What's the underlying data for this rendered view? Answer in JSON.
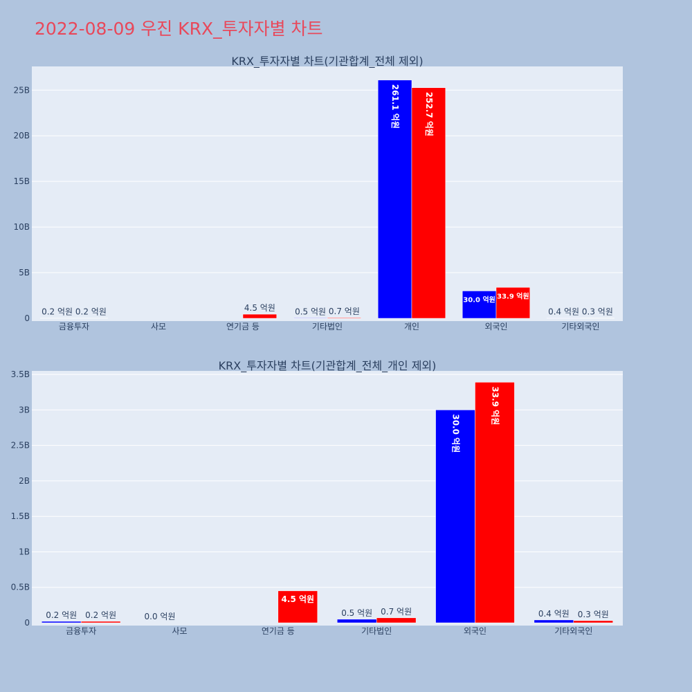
{
  "page": {
    "title": "2022-08-09 우진 KRX_투자자별 차트"
  },
  "colors": {
    "buy": "#0000ff",
    "sell": "#ff0000",
    "plot_bg": "#e5ecf6",
    "page_bg": "#b0c4de",
    "title": "#e8485a",
    "text": "#2a3f5f"
  },
  "chart_data": [
    {
      "type": "bar",
      "title": "KRX_투자자별 차트(기관합계_전체 제외)",
      "categories": [
        "금융투자",
        "사모",
        "연기금 등",
        "기타법인",
        "개인",
        "외국인",
        "기타외국인"
      ],
      "series": [
        {
          "color": "#0000ff",
          "values": [
            0.02,
            null,
            null,
            0.05,
            26.11,
            3.0,
            0.04
          ],
          "labels": [
            "0.2 억원",
            "",
            "",
            "0.5 억원",
            "261.1 억원",
            "30.0 억원",
            "0.4 억원"
          ]
        },
        {
          "color": "#ff0000",
          "values": [
            0.02,
            null,
            0.45,
            0.07,
            25.27,
            3.39,
            0.03
          ],
          "labels": [
            "0.2 억원",
            "",
            "4.5 억원",
            "0.7 억원",
            "252.7 억원",
            "33.9 억원",
            "0.3 억원"
          ]
        }
      ],
      "ylim": [
        0,
        27.6
      ],
      "yticks": [
        0,
        5,
        10,
        15,
        20,
        25
      ],
      "ytick_labels": [
        "0",
        "5B",
        "10B",
        "15B",
        "20B",
        "25B"
      ],
      "grid": true
    },
    {
      "type": "bar",
      "title": "KRX_투자자별 차트(기관합계_전체_개인 제외)",
      "categories": [
        "금융투자",
        "사모",
        "연기금 등",
        "기타법인",
        "외국인",
        "기타외국인"
      ],
      "series": [
        {
          "color": "#0000ff",
          "values": [
            0.02,
            0.0,
            null,
            0.05,
            3.0,
            0.04
          ],
          "labels": [
            "0.2 억원",
            "0.0 억원",
            "",
            "0.5 억원",
            "30.0 억원",
            "0.4 억원"
          ]
        },
        {
          "color": "#ff0000",
          "values": [
            0.02,
            null,
            0.45,
            0.07,
            3.39,
            0.03
          ],
          "labels": [
            "0.2 억원",
            "",
            "4.5 억원",
            "0.7 억원",
            "33.9 억원",
            "0.3 억원"
          ]
        }
      ],
      "ylim": [
        0,
        3.55
      ],
      "yticks": [
        0,
        0.5,
        1,
        1.5,
        2,
        2.5,
        3,
        3.5
      ],
      "ytick_labels": [
        "0",
        "0.5B",
        "1B",
        "1.5B",
        "2B",
        "2.5B",
        "3B",
        "3.5B"
      ],
      "grid": true
    }
  ]
}
